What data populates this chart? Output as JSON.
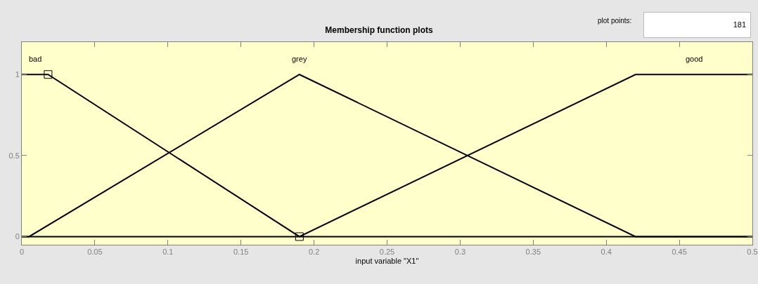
{
  "chart_data": {
    "type": "line",
    "title": "Membership function plots",
    "xlabel": "input variable \"X1\"",
    "xlim": [
      0,
      0.5
    ],
    "xticks": [
      0,
      0.05,
      0.1,
      0.15,
      0.2,
      0.25,
      0.3,
      0.35,
      0.4,
      0.45,
      0.5
    ],
    "ylim": [
      -0.05,
      1.2
    ],
    "yticks": [
      0,
      0.5,
      1
    ],
    "grid": false,
    "legend": false,
    "marker": "none",
    "line_style": "solid",
    "annotations": [
      "plot points:",
      "181"
    ],
    "series": [
      {
        "name": "bad",
        "color": "#000000",
        "x": [
          0,
          0.018,
          0.19,
          0.5
        ],
        "values": [
          1,
          1,
          0,
          0
        ]
      },
      {
        "name": "grey",
        "color": "#000000",
        "x": [
          0,
          0.005,
          0.19,
          0.42,
          0.5
        ],
        "values": [
          0,
          0,
          1,
          0,
          0
        ]
      },
      {
        "name": "good",
        "color": "#000000",
        "x": [
          0,
          0.19,
          0.42,
          0.5
        ],
        "values": [
          0,
          0,
          1,
          1
        ]
      },
      {
        "type": "scatter",
        "marker": "square",
        "color": "#000000",
        "x": [
          0.018,
          0.19
        ],
        "values": [
          1,
          0
        ]
      }
    ]
  }
}
